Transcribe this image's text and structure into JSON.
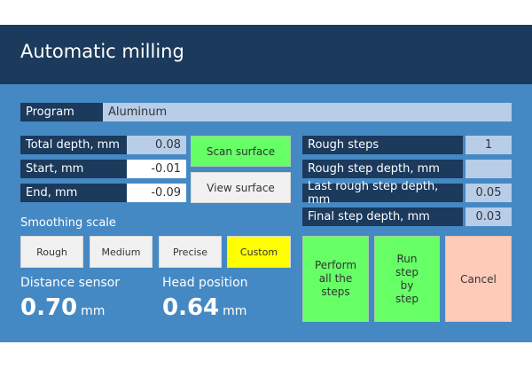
{
  "title": "Automatic milling",
  "program": {
    "label": "Program",
    "value": "Aluminum"
  },
  "left_fields": [
    {
      "label": "Total depth, mm",
      "value": "0.08"
    },
    {
      "label": "Start, mm",
      "value": "-0.01"
    },
    {
      "label": "End, mm",
      "value": "-0.09"
    }
  ],
  "scan_surface": "Scan surface",
  "view_surface": "View surface",
  "smoothing": {
    "label": "Smoothing scale",
    "options": [
      "Rough",
      "Medium",
      "Precise",
      "Custom"
    ],
    "selected": "Custom"
  },
  "distance_sensor": {
    "label": "Distance sensor",
    "value": "0.70",
    "unit": "mm"
  },
  "head_position": {
    "label": "Head position",
    "value": "0.64",
    "unit": "mm"
  },
  "right_fields": [
    {
      "label": "Rough steps",
      "value": "1"
    },
    {
      "label": "Rough step depth, mm",
      "value": ""
    },
    {
      "label": "Last rough step depth, mm",
      "value": "0.05"
    },
    {
      "label": "Final step depth, mm",
      "value": "0.03"
    }
  ],
  "actions": {
    "perform_all": "Perform all the steps",
    "run_step": "Run step by step",
    "cancel": "Cancel"
  }
}
